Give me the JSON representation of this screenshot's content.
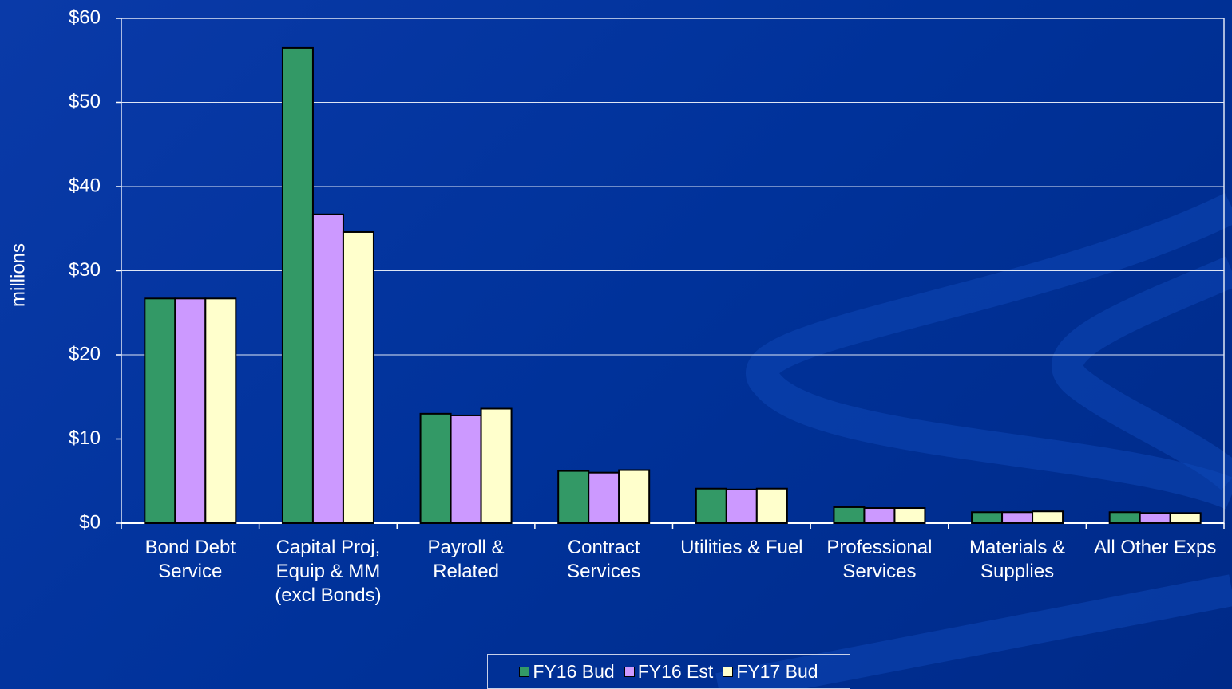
{
  "chart_data": {
    "type": "bar",
    "y_label": "millions",
    "categories": [
      "Bond Debt\nService",
      "Capital Proj,\nEquip & MM\n(excl Bonds)",
      "Payroll &\nRelated",
      "Contract\nServices",
      "Utilities & Fuel",
      "Professional\nServices",
      "Materials &\nSupplies",
      "All Other Exps"
    ],
    "series": [
      {
        "name": "FY16 Bud",
        "color": "#339966",
        "values": [
          26.7,
          56.5,
          13.0,
          6.2,
          4.1,
          1.9,
          1.3,
          1.3
        ]
      },
      {
        "name": "FY16 Est",
        "color": "#cc99ff",
        "values": [
          26.7,
          36.7,
          12.8,
          6.0,
          4.0,
          1.8,
          1.3,
          1.2
        ]
      },
      {
        "name": "FY17 Bud",
        "color": "#ffffcc",
        "values": [
          26.7,
          34.6,
          13.6,
          6.3,
          4.1,
          1.8,
          1.4,
          1.2
        ]
      }
    ],
    "ylim": [
      0,
      60
    ],
    "yticks": [
      {
        "value": 0,
        "label": "$0"
      },
      {
        "value": 10,
        "label": "$10"
      },
      {
        "value": 20,
        "label": "$20"
      },
      {
        "value": 30,
        "label": "$30"
      },
      {
        "value": 40,
        "label": "$40"
      },
      {
        "value": 50,
        "label": "$50"
      },
      {
        "value": 60,
        "label": "$60"
      }
    ],
    "grid": true,
    "legend": "bottom"
  }
}
